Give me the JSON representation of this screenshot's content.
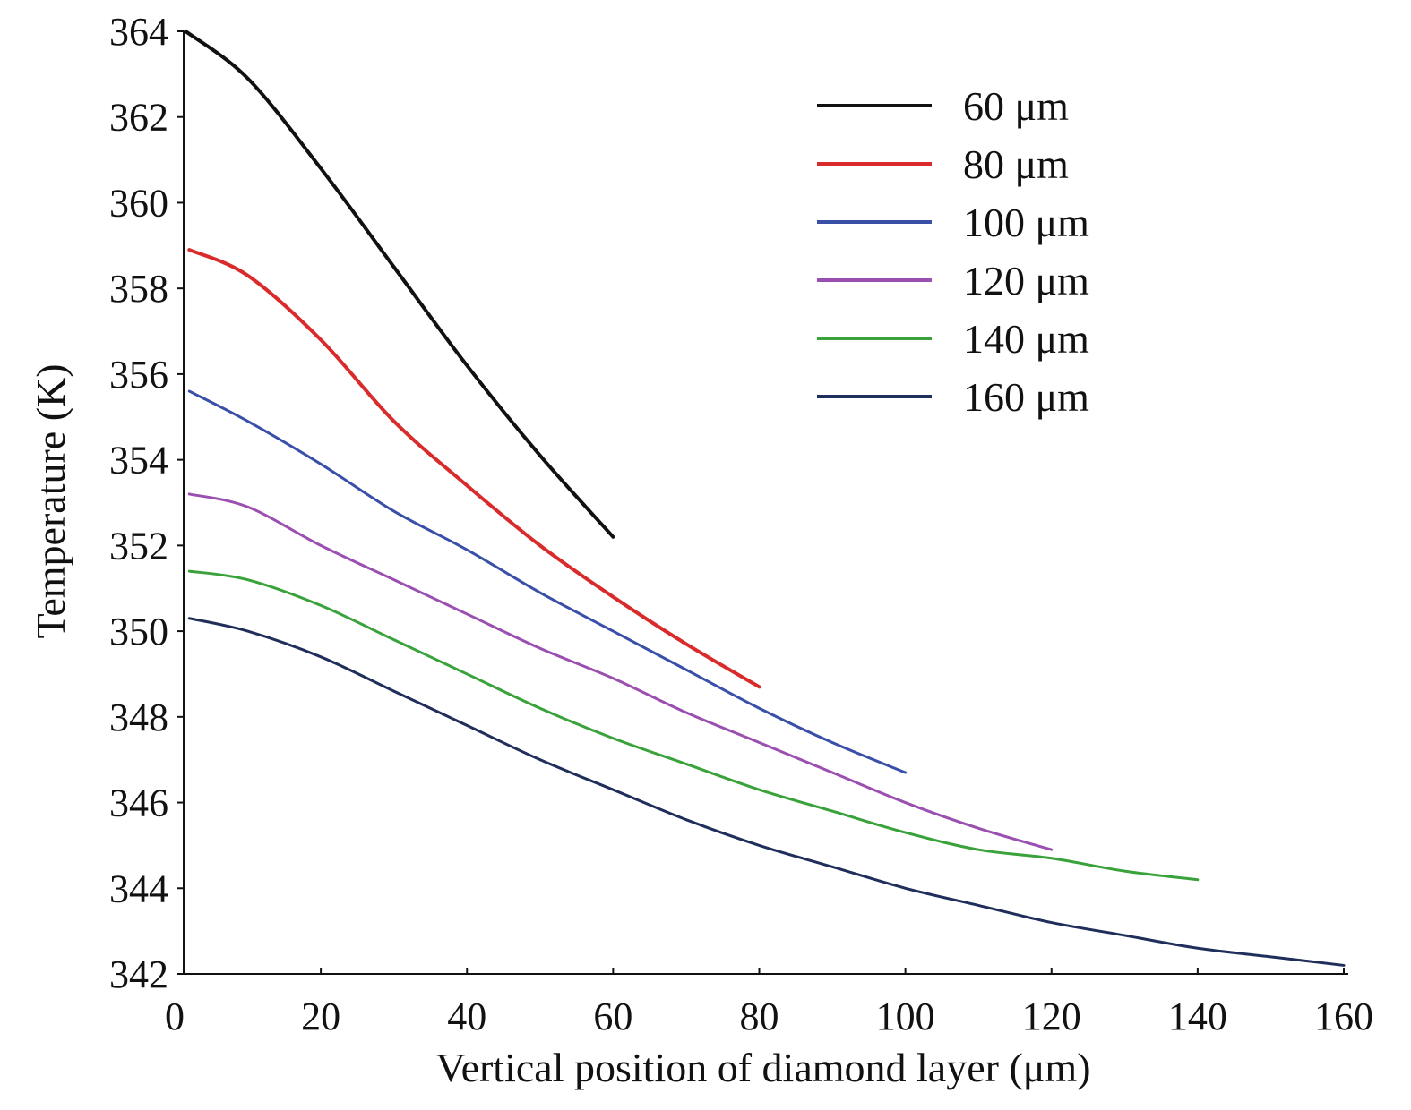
{
  "chart_data": {
    "type": "line",
    "title": "",
    "xlabel": "Vertical position of diamond layer (μm)",
    "ylabel": "Temperature (K)",
    "xlim": [
      0,
      160
    ],
    "ylim": [
      342,
      364
    ],
    "xticks": [
      0,
      20,
      40,
      60,
      80,
      100,
      120,
      140,
      160
    ],
    "yticks": [
      342,
      344,
      346,
      348,
      350,
      352,
      354,
      356,
      358,
      360,
      362,
      364
    ],
    "grid": false,
    "legend_position": "top-right",
    "series": [
      {
        "name": "60 μm",
        "color": "#111111",
        "x": [
          1.5,
          10,
          20,
          30,
          40,
          50,
          60
        ],
        "y": [
          364.0,
          362.9,
          360.8,
          358.5,
          356.2,
          354.1,
          352.2
        ]
      },
      {
        "name": "80 μm",
        "color": "#d92b2b",
        "x": [
          2,
          10,
          20,
          30,
          40,
          50,
          60,
          70,
          80
        ],
        "y": [
          358.9,
          358.3,
          356.8,
          354.9,
          353.4,
          352.0,
          350.8,
          349.7,
          348.7
        ]
      },
      {
        "name": "100 μm",
        "color": "#3a4fa8",
        "x": [
          2,
          10,
          20,
          30,
          40,
          50,
          60,
          70,
          80,
          90,
          100
        ],
        "y": [
          355.6,
          354.9,
          353.9,
          352.8,
          351.9,
          350.9,
          350.0,
          349.1,
          348.2,
          347.4,
          346.7
        ]
      },
      {
        "name": "120 μm",
        "color": "#9b4fb0",
        "x": [
          2,
          10,
          20,
          30,
          40,
          50,
          60,
          70,
          80,
          90,
          100,
          110,
          120
        ],
        "y": [
          353.2,
          352.9,
          352.0,
          351.2,
          350.4,
          349.6,
          348.9,
          348.1,
          347.4,
          346.7,
          346.0,
          345.4,
          344.9
        ]
      },
      {
        "name": "140 μm",
        "color": "#3aa23a",
        "x": [
          2,
          10,
          20,
          30,
          40,
          50,
          60,
          70,
          80,
          90,
          100,
          110,
          120,
          130,
          140
        ],
        "y": [
          351.4,
          351.2,
          350.6,
          349.8,
          349.0,
          348.2,
          347.5,
          346.9,
          346.3,
          345.8,
          345.3,
          344.9,
          344.7,
          344.4,
          344.2
        ]
      },
      {
        "name": "160 μm",
        "color": "#1f2e5a",
        "x": [
          2,
          10,
          20,
          30,
          40,
          50,
          60,
          70,
          80,
          90,
          100,
          110,
          120,
          130,
          140,
          150,
          160
        ],
        "y": [
          350.3,
          350.0,
          349.4,
          348.6,
          347.8,
          347.0,
          346.3,
          345.6,
          345.0,
          344.5,
          344.0,
          343.6,
          343.2,
          342.9,
          342.6,
          342.4,
          342.2
        ]
      }
    ]
  }
}
